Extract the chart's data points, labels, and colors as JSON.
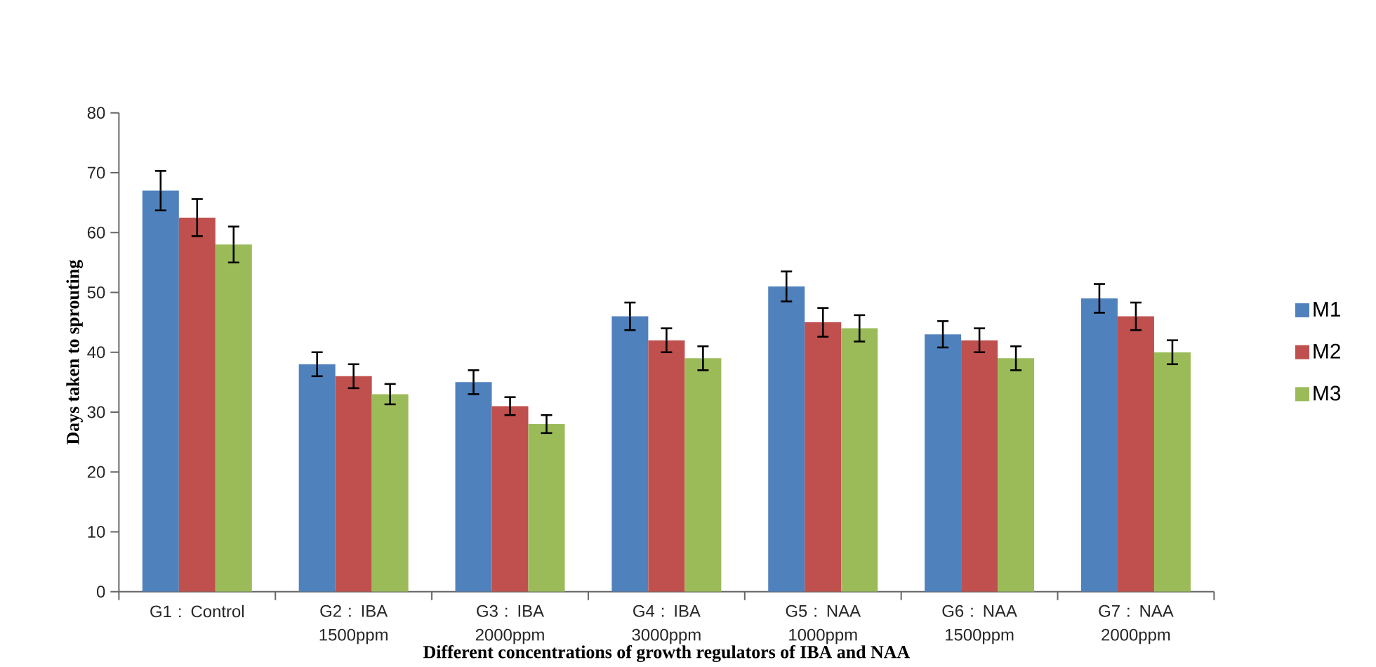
{
  "chart_data": {
    "type": "bar",
    "xlabel": "Different concentrations of growth regulators of IBA and NAA",
    "ylabel": "Days  taken to sprouting",
    "categories": [
      "G1 : Control",
      "G2 : IBA 1500ppm",
      "G3 : IBA 2000ppm",
      "G4 : IBA 3000ppm",
      "G5 : NAA 1000ppm",
      "G6 : NAA 1500ppm",
      "G7 :  NAA 2000ppm"
    ],
    "series": [
      {
        "name": "M1",
        "color": "#4f81bd",
        "values": [
          67,
          38,
          35,
          46,
          51,
          43,
          49
        ],
        "errors": [
          3.3,
          2,
          2,
          2.3,
          2.5,
          2.2,
          2.4
        ]
      },
      {
        "name": "M2",
        "color": "#c0504d",
        "values": [
          62.5,
          36,
          31,
          42,
          45,
          42,
          46
        ],
        "errors": [
          3.1,
          2,
          1.5,
          2,
          2.4,
          2,
          2.3
        ]
      },
      {
        "name": "M3",
        "color": "#9bbb59",
        "values": [
          58,
          33,
          28,
          39,
          44,
          39,
          40
        ],
        "errors": [
          3,
          1.7,
          1.5,
          2,
          2.2,
          2,
          2
        ]
      }
    ],
    "ylim": [
      0,
      80
    ],
    "yticks": [
      0,
      10,
      20,
      30,
      40,
      50,
      60,
      70,
      80
    ],
    "legend": "right"
  }
}
